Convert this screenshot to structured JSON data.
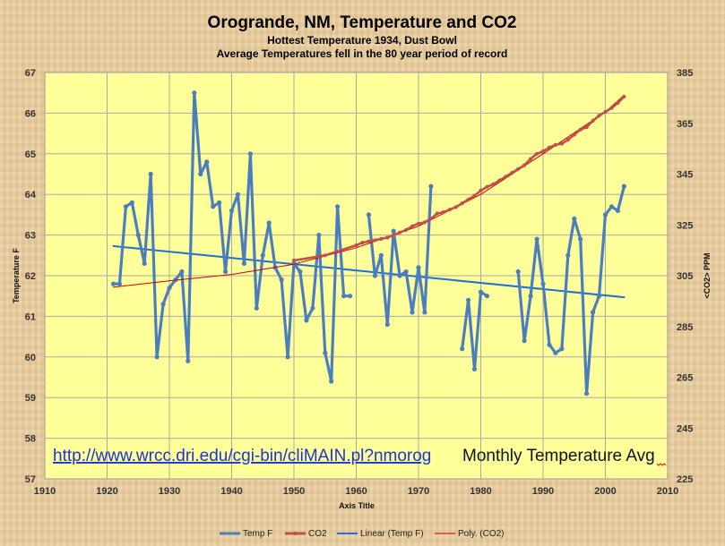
{
  "chart_data": {
    "type": "line",
    "title": "Orogrande, NM, Temperature and CO2",
    "subtitle_1": "Hottest Temperature 1934, Dust Bowl",
    "subtitle_2": "Average Temperatures fell in the 80 year period of record",
    "xlabel": "Axis Title",
    "ylabel": "Temperature F",
    "y2label": "<CO2> PPM",
    "xlim": [
      1910,
      2010
    ],
    "ylim": [
      57,
      67
    ],
    "y2lim": [
      225,
      385
    ],
    "x_ticks": [
      "1910",
      "1920",
      "1930",
      "1940",
      "1950",
      "1960",
      "1970",
      "1980",
      "1990",
      "2000",
      "2010"
    ],
    "y_ticks": [
      "57",
      "58",
      "59",
      "60",
      "61",
      "62",
      "63",
      "64",
      "65",
      "66",
      "67"
    ],
    "y2_ticks": [
      "225",
      "245",
      "265",
      "285",
      "305",
      "325",
      "345",
      "365",
      "385"
    ],
    "annotation_link": "http://www.wrcc.dri.edu/cgi-bin/cliMAIN.pl?nmorog",
    "annotation_text": "Monthly Temperature Avg",
    "colors": {
      "temp": "#4a7ebf",
      "co2": "#c0504d",
      "linear": "#1e6fd9",
      "poly": "#cc0000",
      "plot_bg": "#ffff99"
    },
    "legend": [
      "Temp F",
      "CO2",
      "Linear (Temp F)",
      "Poly. (CO2)"
    ],
    "series": [
      {
        "name": "Temp F",
        "axis": "left",
        "points": [
          [
            1921,
            61.8
          ],
          [
            1922,
            61.8
          ],
          [
            1923,
            63.7
          ],
          [
            1924,
            63.8
          ],
          [
            1925,
            63.0
          ],
          [
            1926,
            62.3
          ],
          [
            1927,
            64.5
          ],
          [
            1928,
            60.0
          ],
          [
            1929,
            61.3
          ],
          [
            1930,
            61.7
          ],
          [
            1931,
            61.9
          ],
          [
            1932,
            62.1
          ],
          [
            1933,
            59.9
          ],
          [
            1934,
            66.5
          ],
          [
            1935,
            64.5
          ],
          [
            1936,
            64.8
          ],
          [
            1937,
            63.7
          ],
          [
            1938,
            63.8
          ],
          [
            1939,
            62.1
          ],
          [
            1940,
            63.6
          ],
          [
            1941,
            64.0
          ],
          [
            1942,
            62.3
          ],
          [
            1943,
            65.0
          ],
          [
            1944,
            61.2
          ],
          [
            1945,
            62.5
          ],
          [
            1946,
            63.3
          ],
          [
            1947,
            62.2
          ],
          [
            1948,
            61.9
          ],
          [
            1949,
            60.0
          ],
          [
            1950,
            62.3
          ],
          [
            1951,
            62.1
          ],
          [
            1952,
            60.9
          ],
          [
            1953,
            61.2
          ],
          [
            1954,
            63.0
          ],
          [
            1955,
            60.1
          ],
          [
            1956,
            59.4
          ],
          [
            1957,
            63.7
          ],
          [
            1958,
            61.5
          ],
          [
            1959,
            61.5
          ],
          null,
          [
            1962,
            63.5
          ],
          [
            1963,
            62.0
          ],
          [
            1964,
            62.5
          ],
          [
            1965,
            60.8
          ],
          [
            1966,
            63.1
          ],
          [
            1967,
            62.0
          ],
          [
            1968,
            62.1
          ],
          [
            1969,
            61.1
          ],
          [
            1970,
            62.2
          ],
          [
            1971,
            61.1
          ],
          [
            1972,
            64.2
          ],
          null,
          [
            1977,
            60.2
          ],
          [
            1978,
            61.4
          ],
          [
            1979,
            59.7
          ],
          [
            1980,
            61.6
          ],
          [
            1981,
            61.5
          ],
          null,
          [
            1986,
            62.1
          ],
          [
            1987,
            60.4
          ],
          [
            1988,
            61.5
          ],
          [
            1989,
            62.9
          ],
          [
            1990,
            61.8
          ],
          [
            1991,
            60.3
          ],
          [
            1992,
            60.1
          ],
          [
            1993,
            60.2
          ],
          [
            1994,
            62.5
          ],
          [
            1995,
            63.4
          ],
          [
            1996,
            62.9
          ],
          [
            1997,
            59.1
          ],
          [
            1998,
            61.1
          ],
          [
            1999,
            61.5
          ],
          [
            2000,
            63.5
          ],
          [
            2001,
            63.7
          ],
          [
            2002,
            63.6
          ],
          [
            2003,
            64.2
          ]
        ]
      },
      {
        "name": "CO2",
        "axis": "right",
        "points": [
          [
            1950,
            311
          ],
          [
            1955,
            313
          ],
          [
            1960,
            317
          ],
          [
            1961,
            318
          ],
          [
            1962,
            318.5
          ],
          [
            1963,
            319
          ],
          [
            1964,
            319.5
          ],
          [
            1965,
            320
          ],
          [
            1966,
            321
          ],
          [
            1967,
            322
          ],
          [
            1968,
            323
          ],
          [
            1969,
            324.5
          ],
          [
            1970,
            325.5
          ],
          [
            1971,
            326
          ],
          [
            1972,
            327.5
          ],
          [
            1973,
            329.5
          ],
          [
            1974,
            330
          ],
          [
            1975,
            331
          ],
          [
            1976,
            332
          ],
          [
            1977,
            333.5
          ],
          [
            1978,
            335
          ],
          [
            1979,
            336.5
          ],
          [
            1980,
            338.5
          ],
          [
            1981,
            340
          ],
          [
            1982,
            341
          ],
          [
            1983,
            342.5
          ],
          [
            1984,
            344
          ],
          [
            1985,
            345.5
          ],
          [
            1986,
            347
          ],
          [
            1987,
            348.5
          ],
          [
            1988,
            351
          ],
          [
            1989,
            353
          ],
          [
            1990,
            354
          ],
          [
            1991,
            355.5
          ],
          [
            1992,
            356.5
          ],
          [
            1993,
            357
          ],
          [
            1994,
            358.5
          ],
          [
            1995,
            360.5
          ],
          [
            1996,
            362.5
          ],
          [
            1997,
            363.5
          ],
          [
            1998,
            366
          ],
          [
            1999,
            368
          ],
          [
            2000,
            369.5
          ],
          [
            2001,
            371
          ],
          [
            2002,
            373
          ],
          [
            2003,
            375.5
          ]
        ]
      },
      {
        "name": "Linear (Temp F)",
        "axis": "left",
        "points": [
          [
            1921,
            62.73
          ],
          [
            2003,
            61.47
          ]
        ]
      },
      {
        "name": "Poly. (CO2)",
        "axis": "right",
        "points": [
          [
            1921,
            300.5
          ],
          [
            1930,
            303
          ],
          [
            1940,
            305.5
          ],
          [
            1950,
            309.5
          ],
          [
            1960,
            316
          ],
          [
            1970,
            324.5
          ],
          [
            1980,
            337
          ],
          [
            1990,
            353
          ],
          [
            2000,
            369.5
          ],
          [
            2003,
            376
          ]
        ]
      }
    ]
  }
}
